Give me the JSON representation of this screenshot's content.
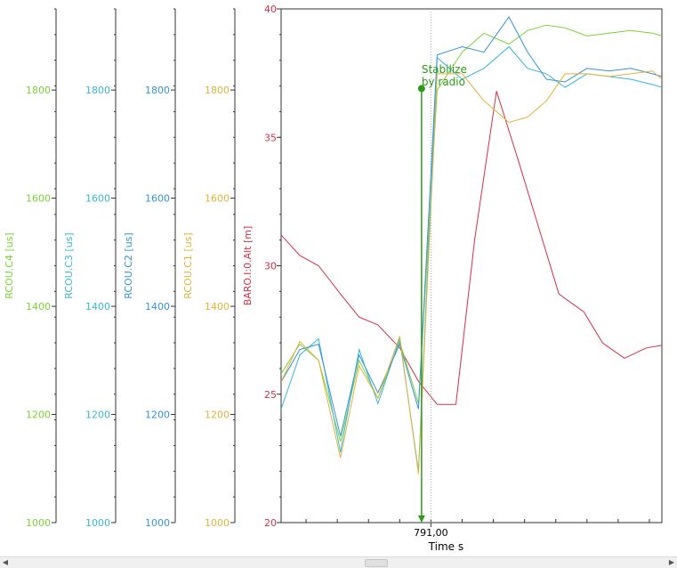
{
  "chart_data": {
    "type": "line",
    "x_label": "Time s",
    "x_ticks": [
      {
        "value": 791.0,
        "label": "791,00"
      }
    ],
    "x_range": [
      790.76,
      791.37
    ],
    "left_axes": [
      {
        "label": "RCOU.C4 [us]",
        "color": "#7fd13b",
        "range": [
          1000,
          1950
        ],
        "ticks": [
          "1000",
          "1200",
          "1400",
          "1600",
          "1800"
        ],
        "tick_values": [
          1000,
          1200,
          1400,
          1600,
          1800
        ]
      },
      {
        "label": "RCOU.C3 [us]",
        "color": "#3bb6d6",
        "range": [
          1000,
          1950
        ],
        "ticks": [
          "1000",
          "1200",
          "1400",
          "1600",
          "1800"
        ],
        "tick_values": [
          1000,
          1200,
          1400,
          1600,
          1800
        ]
      },
      {
        "label": "RCOU.C2 [us]",
        "color": "#3a93d1",
        "range": [
          1000,
          1950
        ],
        "ticks": [
          "1000",
          "1200",
          "1400",
          "1600",
          "1800"
        ],
        "tick_values": [
          1000,
          1200,
          1400,
          1600,
          1800
        ]
      },
      {
        "label": "RCOU.C1 [us]",
        "color": "#e0b43a",
        "range": [
          1000,
          1950
        ],
        "ticks": [
          "1000",
          "1200",
          "1400",
          "1600",
          "1800"
        ],
        "tick_values": [
          1000,
          1200,
          1400,
          1600,
          1800
        ]
      },
      {
        "label": "BARO.I:0.Alt [m]",
        "color": "#d6304a",
        "range": [
          20,
          40
        ],
        "ticks": [
          "20",
          "25",
          "30",
          "35",
          "40"
        ],
        "tick_values": [
          20,
          25,
          30,
          35,
          40
        ]
      }
    ],
    "series": [
      {
        "name": "BARO.I:0.Alt",
        "axis": 4,
        "color": "#d6304a",
        "x": [
          790.76,
          790.79,
          790.82,
          790.855,
          790.885,
          790.915,
          790.95,
          790.98,
          791.01,
          791.04,
          791.07,
          791.105,
          791.14,
          791.175,
          791.205,
          791.245,
          791.275,
          791.31,
          791.345,
          791.37
        ],
        "y": [
          31.2,
          30.4,
          30.0,
          28.9,
          28.0,
          27.7,
          26.8,
          25.5,
          24.6,
          24.6,
          31.0,
          36.8,
          34.1,
          31.3,
          28.9,
          28.2,
          27.0,
          26.4,
          26.8,
          26.9
        ]
      },
      {
        "name": "RCOU.C4",
        "axis": 0,
        "color": "#7fd13b",
        "x": [
          790.76,
          790.79,
          790.82,
          790.855,
          790.885,
          790.915,
          790.95,
          790.98,
          791.01,
          791.05,
          791.085,
          791.125,
          791.155,
          791.185,
          791.215,
          791.25,
          791.285,
          791.32,
          791.355,
          791.37
        ],
        "y": [
          1275,
          1330,
          1300,
          1150,
          1300,
          1230,
          1335,
          1220,
          1800,
          1870,
          1905,
          1885,
          1910,
          1920,
          1915,
          1900,
          1905,
          1910,
          1905,
          1900
        ]
      },
      {
        "name": "RCOU.C3",
        "axis": 1,
        "color": "#3bb6d6",
        "x": [
          790.76,
          790.79,
          790.82,
          790.855,
          790.885,
          790.915,
          790.95,
          790.98,
          791.01,
          791.05,
          791.085,
          791.125,
          791.155,
          791.185,
          791.215,
          791.25,
          791.285,
          791.32,
          791.355,
          791.37
        ],
        "y": [
          1210,
          1310,
          1340,
          1130,
          1320,
          1220,
          1340,
          1095,
          1860,
          1820,
          1840,
          1880,
          1840,
          1830,
          1805,
          1830,
          1825,
          1820,
          1810,
          1805
        ]
      },
      {
        "name": "RCOU.C2",
        "axis": 2,
        "color": "#3a93d1",
        "x": [
          790.76,
          790.79,
          790.82,
          790.855,
          790.885,
          790.915,
          790.95,
          790.98,
          791.01,
          791.05,
          791.085,
          791.125,
          791.155,
          791.185,
          791.215,
          791.25,
          791.285,
          791.32,
          791.355,
          791.37
        ],
        "y": [
          1260,
          1320,
          1330,
          1160,
          1310,
          1240,
          1330,
          1210,
          1865,
          1880,
          1870,
          1935,
          1870,
          1820,
          1815,
          1840,
          1835,
          1840,
          1830,
          1825
        ]
      },
      {
        "name": "RCOU.C1",
        "axis": 3,
        "color": "#e0b43a",
        "x": [
          790.76,
          790.79,
          790.82,
          790.855,
          790.885,
          790.915,
          790.95,
          790.98,
          791.01,
          791.05,
          791.085,
          791.125,
          791.155,
          791.185,
          791.215,
          791.25,
          791.285,
          791.32,
          791.355,
          791.37
        ],
        "y": [
          1260,
          1335,
          1300,
          1120,
          1290,
          1230,
          1345,
          1090,
          1830,
          1830,
          1780,
          1740,
          1750,
          1780,
          1830,
          1830,
          1825,
          1830,
          1835,
          1820
        ]
      }
    ],
    "annotation": {
      "text_lines": [
        "Stabilize",
        "by radio"
      ],
      "x": 790.985,
      "axis": 4,
      "y_top": 36.9,
      "y_bottom": 20.0,
      "color": "#2f9a1a"
    },
    "cursor": {
      "x": 791.0
    }
  }
}
